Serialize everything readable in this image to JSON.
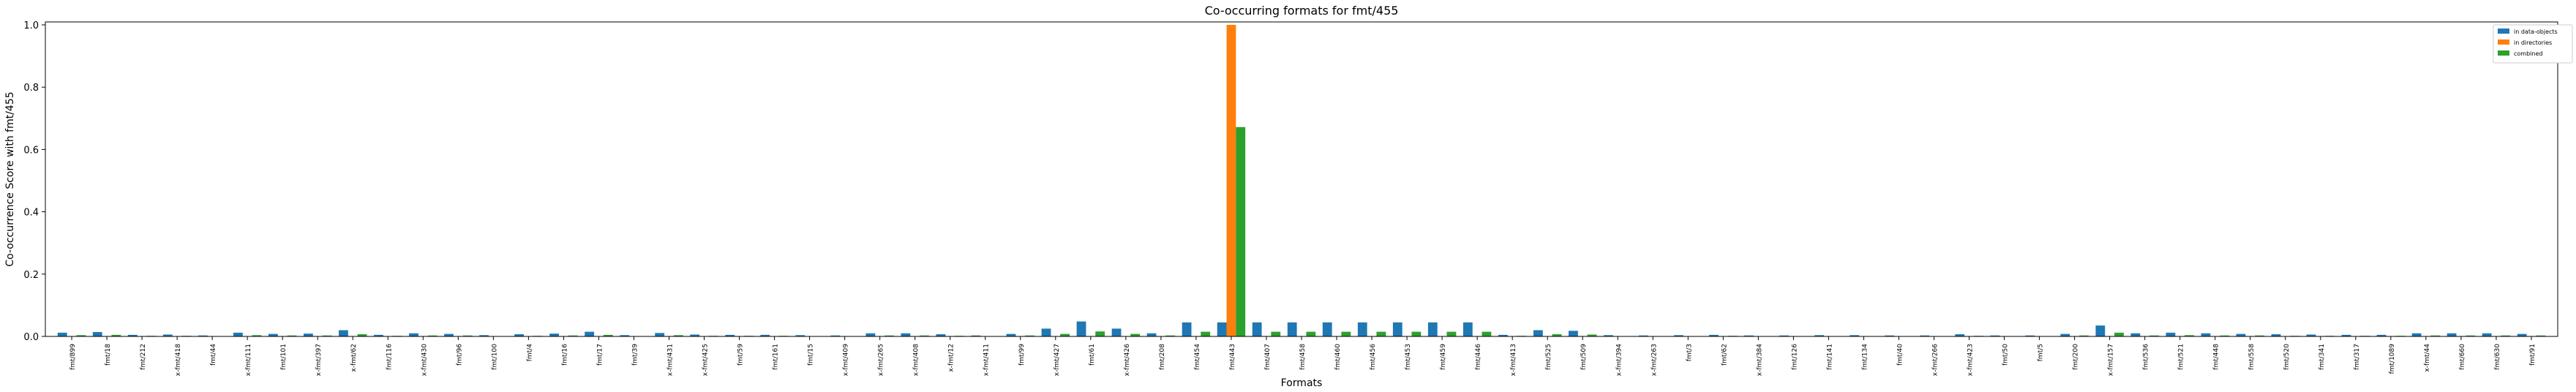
{
  "chart_data": {
    "type": "bar",
    "title": "Co-occurring formats for fmt/455",
    "xlabel": "Formats",
    "ylabel": "Co-occurrence Score with fmt/455",
    "ylim": [
      0,
      1.0
    ],
    "yticks": [
      "0.0",
      "0.2",
      "0.4",
      "0.6",
      "0.8",
      "1.0"
    ],
    "grid": false,
    "legend_position": "top-right, outside plot",
    "categories": [
      "fmt/899",
      "fmt/18",
      "fmt/212",
      "x-fmt/418",
      "fmt/44",
      "x-fmt/111",
      "fmt/101",
      "x-fmt/397",
      "x-fmt/62",
      "fmt/116",
      "x-fmt/430",
      "fmt/96",
      "fmt/100",
      "fmt/4",
      "fmt/16",
      "fmt/17",
      "fmt/39",
      "x-fmt/431",
      "x-fmt/425",
      "fmt/59",
      "fmt/161",
      "fmt/15",
      "x-fmt/409",
      "x-fmt/265",
      "x-fmt/408",
      "x-fmt/12",
      "x-fmt/411",
      "fmt/99",
      "x-fmt/427",
      "fmt/61",
      "x-fmt/426",
      "fmt/208",
      "fmt/454",
      "fmt/443",
      "fmt/407",
      "fmt/458",
      "fmt/460",
      "fmt/456",
      "fmt/453",
      "fmt/459",
      "fmt/446",
      "x-fmt/413",
      "fmt/525",
      "fmt/509",
      "x-fmt/394",
      "x-fmt/263",
      "fmt/3",
      "fmt/62",
      "x-fmt/384",
      "fmt/126",
      "fmt/141",
      "fmt/134",
      "fmt/40",
      "x-fmt/266",
      "x-fmt/423",
      "fmt/50",
      "fmt/5",
      "fmt/200",
      "x-fmt/157",
      "fmt/536",
      "fmt/521",
      "fmt/448",
      "fmt/558",
      "fmt/520",
      "fmt/341",
      "fmt/317",
      "fmt/1089",
      "x-fmt/44",
      "fmt/660",
      "fmt/630",
      "fmt/91"
    ],
    "series": [
      {
        "name": "in data-objects",
        "color": "#1f77b4",
        "values": [
          0.012,
          0.014,
          0.005,
          0.006,
          0.003,
          0.012,
          0.008,
          0.009,
          0.02,
          0.005,
          0.01,
          0.008,
          0.004,
          0.007,
          0.009,
          0.015,
          0.004,
          0.011,
          0.006,
          0.005,
          0.005,
          0.004,
          0.003,
          0.01,
          0.01,
          0.007,
          0.003,
          0.008,
          0.025,
          0.048,
          0.025,
          0.01,
          0.045,
          0.045,
          0.045,
          0.045,
          0.045,
          0.045,
          0.045,
          0.045,
          0.045,
          0.005,
          0.02,
          0.018,
          0.004,
          0.003,
          0.004,
          0.005,
          0.003,
          0.003,
          0.004,
          0.004,
          0.003,
          0.003,
          0.007,
          0.003,
          0.003,
          0.008,
          0.035,
          0.01,
          0.012,
          0.01,
          0.008,
          0.007,
          0.006,
          0.005,
          0.005,
          0.01,
          0.01,
          0.01,
          0.008
        ]
      },
      {
        "name": "in directories",
        "color": "#ff7f0e",
        "values": [
          0,
          0,
          0,
          0,
          0,
          0,
          0,
          0,
          0,
          0,
          0,
          0,
          0,
          0,
          0,
          0,
          0,
          0,
          0,
          0,
          0,
          0,
          0,
          0,
          0,
          0,
          0,
          0,
          0,
          0,
          0,
          0,
          0,
          1.0,
          0,
          0,
          0,
          0,
          0,
          0,
          0,
          0,
          0,
          0,
          0,
          0,
          0,
          0,
          0,
          0,
          0,
          0,
          0,
          0,
          0,
          0,
          0,
          0,
          0,
          0,
          0,
          0,
          0,
          0,
          0,
          0,
          0,
          0,
          0,
          0,
          0
        ]
      },
      {
        "name": "combined",
        "color": "#2ca02c",
        "values": [
          0.004,
          0.005,
          0.002,
          0.002,
          0.001,
          0.004,
          0.003,
          0.003,
          0.007,
          0.002,
          0.003,
          0.003,
          0.001,
          0.002,
          0.003,
          0.005,
          0.001,
          0.004,
          0.002,
          0.002,
          0.002,
          0.001,
          0.001,
          0.003,
          0.003,
          0.002,
          0.001,
          0.003,
          0.008,
          0.016,
          0.008,
          0.003,
          0.015,
          0.672,
          0.015,
          0.015,
          0.015,
          0.015,
          0.015,
          0.015,
          0.015,
          0.002,
          0.007,
          0.006,
          0.001,
          0.001,
          0.001,
          0.002,
          0.001,
          0.001,
          0.001,
          0.001,
          0.001,
          0.001,
          0.002,
          0.001,
          0.001,
          0.003,
          0.012,
          0.003,
          0.004,
          0.003,
          0.003,
          0.002,
          0.002,
          0.002,
          0.002,
          0.003,
          0.003,
          0.003,
          0.003
        ]
      }
    ]
  }
}
